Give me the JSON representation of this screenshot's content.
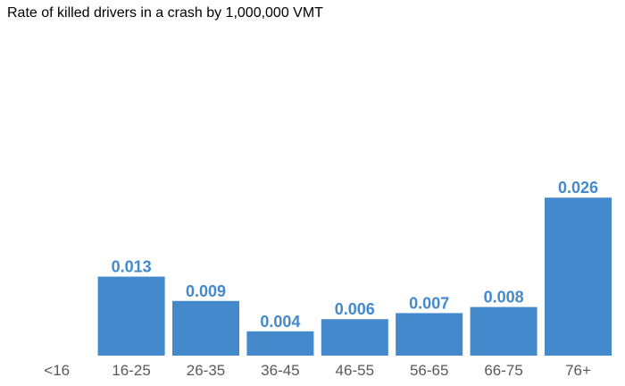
{
  "chart_data": {
    "type": "bar",
    "title": "Rate of killed drivers in a crash by 1,000,000 VMT",
    "xlabel": "",
    "ylabel": "",
    "categories": [
      "<16",
      "16-25",
      "26-35",
      "36-45",
      "46-55",
      "56-65",
      "66-75",
      "76+"
    ],
    "values": [
      null,
      0.013,
      0.009,
      0.004,
      0.006,
      0.007,
      0.008,
      0.026
    ],
    "value_labels": [
      "",
      "0.013",
      "0.009",
      "0.004",
      "0.006",
      "0.007",
      "0.008",
      "0.026"
    ],
    "ylim": [
      0,
      0.05
    ],
    "grid": false,
    "legend": "none",
    "colors": {
      "bar": "#4389cc",
      "value_label": "#4389cc",
      "tick_label": "#595959",
      "title": "#000000"
    }
  }
}
